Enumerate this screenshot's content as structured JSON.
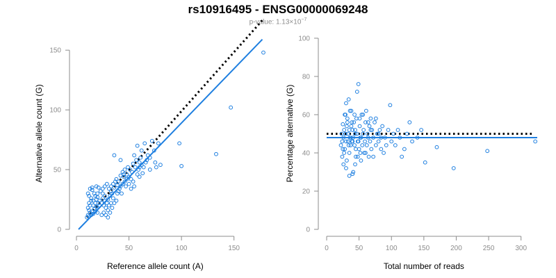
{
  "chart_data": [
    {
      "type": "scatter",
      "xlabel": "Reference allele count (A)",
      "ylabel": "Alternative allele count (G)",
      "xlim": [
        0,
        180
      ],
      "ylim": [
        0,
        160
      ],
      "xticks": [
        0,
        50,
        100,
        150
      ],
      "yticks": [
        0,
        50,
        100,
        150
      ],
      "grid": false,
      "reference_line": {
        "x": [
          10,
          177
        ],
        "y": [
          10,
          175
        ],
        "style": "dotted",
        "color": "#000000"
      },
      "fit_line": {
        "x": [
          2,
          177
        ],
        "y": [
          0,
          159
        ],
        "color": "#1e7fe0"
      },
      "points": [
        [
          10,
          10
        ],
        [
          11,
          12
        ],
        [
          12,
          11
        ],
        [
          13,
          14
        ],
        [
          12,
          16
        ],
        [
          14,
          12
        ],
        [
          15,
          15
        ],
        [
          11,
          18
        ],
        [
          13,
          20
        ],
        [
          16,
          13
        ],
        [
          17,
          17
        ],
        [
          18,
          15
        ],
        [
          12,
          22
        ],
        [
          14,
          24
        ],
        [
          16,
          20
        ],
        [
          18,
          22
        ],
        [
          20,
          18
        ],
        [
          20,
          14
        ],
        [
          22,
          20
        ],
        [
          19,
          25
        ],
        [
          11,
          30
        ],
        [
          13,
          34
        ],
        [
          15,
          33
        ],
        [
          17,
          30
        ],
        [
          18,
          28
        ],
        [
          20,
          27
        ],
        [
          22,
          24
        ],
        [
          24,
          22
        ],
        [
          25,
          26
        ],
        [
          26,
          20
        ],
        [
          27,
          24
        ],
        [
          28,
          18
        ],
        [
          29,
          22
        ],
        [
          30,
          25
        ],
        [
          30,
          16
        ],
        [
          31,
          20
        ],
        [
          32,
          28
        ],
        [
          33,
          22
        ],
        [
          34,
          30
        ],
        [
          35,
          26
        ],
        [
          24,
          12
        ],
        [
          26,
          14
        ],
        [
          28,
          12
        ],
        [
          30,
          10
        ],
        [
          32,
          14
        ],
        [
          34,
          18
        ],
        [
          36,
          22
        ],
        [
          38,
          24
        ],
        [
          39,
          30
        ],
        [
          40,
          32
        ],
        [
          23,
          32
        ],
        [
          25,
          34
        ],
        [
          27,
          36
        ],
        [
          29,
          38
        ],
        [
          21,
          35
        ],
        [
          19,
          36
        ],
        [
          31,
          34
        ],
        [
          33,
          36
        ],
        [
          35,
          38
        ],
        [
          37,
          40
        ],
        [
          38,
          42
        ],
        [
          40,
          40
        ],
        [
          42,
          36
        ],
        [
          44,
          38
        ],
        [
          45,
          44
        ],
        [
          46,
          40
        ],
        [
          48,
          42
        ],
        [
          43,
          30
        ],
        [
          41,
          34
        ],
        [
          47,
          36
        ],
        [
          36,
          35
        ],
        [
          39,
          37
        ],
        [
          42,
          45
        ],
        [
          45,
          46
        ],
        [
          48,
          46
        ],
        [
          50,
          44
        ],
        [
          52,
          42
        ],
        [
          54,
          40
        ],
        [
          55,
          36
        ],
        [
          53,
          48
        ],
        [
          50,
          38
        ],
        [
          52,
          34
        ],
        [
          44,
          48
        ],
        [
          46,
          50
        ],
        [
          49,
          52
        ],
        [
          51,
          50
        ],
        [
          54,
          55
        ],
        [
          56,
          52
        ],
        [
          57,
          58
        ],
        [
          58,
          46
        ],
        [
          59,
          50
        ],
        [
          60,
          44
        ],
        [
          60,
          56
        ],
        [
          61,
          60
        ],
        [
          62,
          54
        ],
        [
          64,
          52
        ],
        [
          66,
          56
        ],
        [
          68,
          62
        ],
        [
          70,
          60
        ],
        [
          62,
          66
        ],
        [
          58,
          70
        ],
        [
          65,
          72
        ],
        [
          72,
          74
        ],
        [
          75,
          56
        ],
        [
          76,
          52
        ],
        [
          78,
          72
        ],
        [
          80,
          54
        ],
        [
          74,
          66
        ],
        [
          55,
          62
        ],
        [
          63,
          47
        ],
        [
          60,
          52
        ],
        [
          70,
          50
        ],
        [
          67,
          58
        ],
        [
          36,
          62
        ],
        [
          42,
          58
        ],
        [
          15,
          35
        ],
        [
          20,
          30
        ],
        [
          14,
          26
        ],
        [
          12,
          28
        ],
        [
          16,
          24
        ],
        [
          98,
          72
        ],
        [
          100,
          53
        ],
        [
          133,
          63
        ],
        [
          147,
          102
        ],
        [
          178,
          148
        ],
        [
          27,
          28
        ],
        [
          25,
          30
        ],
        [
          33,
          32
        ],
        [
          21,
          22
        ],
        [
          19,
          19
        ]
      ]
    },
    {
      "type": "scatter",
      "xlabel": "Total number of reads",
      "ylabel": "Percentage alternative (G)",
      "xlim": [
        0,
        325
      ],
      "ylim": [
        0,
        100
      ],
      "xticks": [
        0,
        50,
        100,
        150,
        200,
        250,
        300
      ],
      "yticks": [
        0,
        20,
        40,
        60,
        80,
        100
      ],
      "grid": false,
      "reference_line": {
        "y": 50,
        "x": [
          0,
          320
        ],
        "style": "dotted",
        "color": "#000000"
      },
      "fit_line": {
        "y": 48,
        "x": [
          0,
          325
        ],
        "color": "#1e7fe0"
      },
      "points": [
        [
          22,
          44
        ],
        [
          23,
          50
        ],
        [
          24,
          38
        ],
        [
          25,
          55
        ],
        [
          26,
          48
        ],
        [
          27,
          52
        ],
        [
          28,
          42
        ],
        [
          29,
          60
        ],
        [
          30,
          46
        ],
        [
          31,
          36
        ],
        [
          32,
          58
        ],
        [
          33,
          50
        ],
        [
          34,
          44
        ],
        [
          35,
          40
        ],
        [
          36,
          62
        ],
        [
          37,
          48
        ],
        [
          38,
          54
        ],
        [
          39,
          46
        ],
        [
          40,
          52
        ],
        [
          41,
          30
        ],
        [
          42,
          56
        ],
        [
          43,
          44
        ],
        [
          44,
          50
        ],
        [
          45,
          38
        ],
        [
          46,
          58
        ],
        [
          47,
          72
        ],
        [
          48,
          46
        ],
        [
          49,
          76
        ],
        [
          50,
          42
        ],
        [
          51,
          54
        ],
        [
          52,
          48
        ],
        [
          53,
          36
        ],
        [
          54,
          60
        ],
        [
          55,
          44
        ],
        [
          56,
          50
        ],
        [
          57,
          52
        ],
        [
          58,
          40
        ],
        [
          59,
          46
        ],
        [
          60,
          56
        ],
        [
          61,
          62
        ],
        [
          62,
          44
        ],
        [
          63,
          50
        ],
        [
          64,
          48
        ],
        [
          65,
          38
        ],
        [
          66,
          54
        ],
        [
          67,
          46
        ],
        [
          68,
          58
        ],
        [
          69,
          42
        ],
        [
          70,
          52
        ],
        [
          72,
          48
        ],
        [
          74,
          56
        ],
        [
          76,
          44
        ],
        [
          78,
          50
        ],
        [
          80,
          46
        ],
        [
          82,
          52
        ],
        [
          84,
          42
        ],
        [
          86,
          54
        ],
        [
          88,
          40
        ],
        [
          90,
          48
        ],
        [
          92,
          44
        ],
        [
          95,
          52
        ],
        [
          98,
          65
        ],
        [
          100,
          46
        ],
        [
          103,
          50
        ],
        [
          106,
          44
        ],
        [
          110,
          52
        ],
        [
          113,
          48
        ],
        [
          116,
          38
        ],
        [
          120,
          42
        ],
        [
          124,
          50
        ],
        [
          128,
          56
        ],
        [
          132,
          46
        ],
        [
          140,
          48
        ],
        [
          146,
          52
        ],
        [
          152,
          35
        ],
        [
          170,
          43
        ],
        [
          196,
          32
        ],
        [
          248,
          41
        ],
        [
          322,
          46
        ],
        [
          30,
          66
        ],
        [
          34,
          68
        ],
        [
          38,
          62
        ],
        [
          26,
          34
        ],
        [
          30,
          32
        ],
        [
          35,
          28
        ],
        [
          40,
          29
        ],
        [
          44,
          34
        ],
        [
          28,
          60
        ],
        [
          32,
          56
        ],
        [
          36,
          48
        ],
        [
          40,
          46
        ],
        [
          44,
          52
        ],
        [
          48,
          38
        ],
        [
          52,
          40
        ],
        [
          56,
          60
        ],
        [
          60,
          40
        ],
        [
          64,
          56
        ],
        [
          68,
          52
        ],
        [
          72,
          38
        ],
        [
          76,
          58
        ],
        [
          80,
          50
        ],
        [
          84,
          48
        ],
        [
          24,
          46
        ],
        [
          25,
          42
        ],
        [
          27,
          40
        ],
        [
          29,
          50
        ],
        [
          31,
          54
        ],
        [
          33,
          46
        ],
        [
          35,
          52
        ],
        [
          37,
          44
        ],
        [
          39,
          56
        ],
        [
          41,
          48
        ],
        [
          43,
          60
        ],
        [
          45,
          42
        ],
        [
          47,
          50
        ],
        [
          49,
          46
        ],
        [
          51,
          58
        ],
        [
          53,
          48
        ]
      ]
    }
  ],
  "header": {
    "title": "rs10916495 - ENSG00000069248",
    "pvalue_prefix": "p-value: 1.13×10",
    "pvalue_exponent": "−7"
  },
  "colors": {
    "point": "#1e7fe0",
    "fit": "#1e7fe0",
    "reference": "#000000",
    "axis": "#8c8c8c"
  }
}
